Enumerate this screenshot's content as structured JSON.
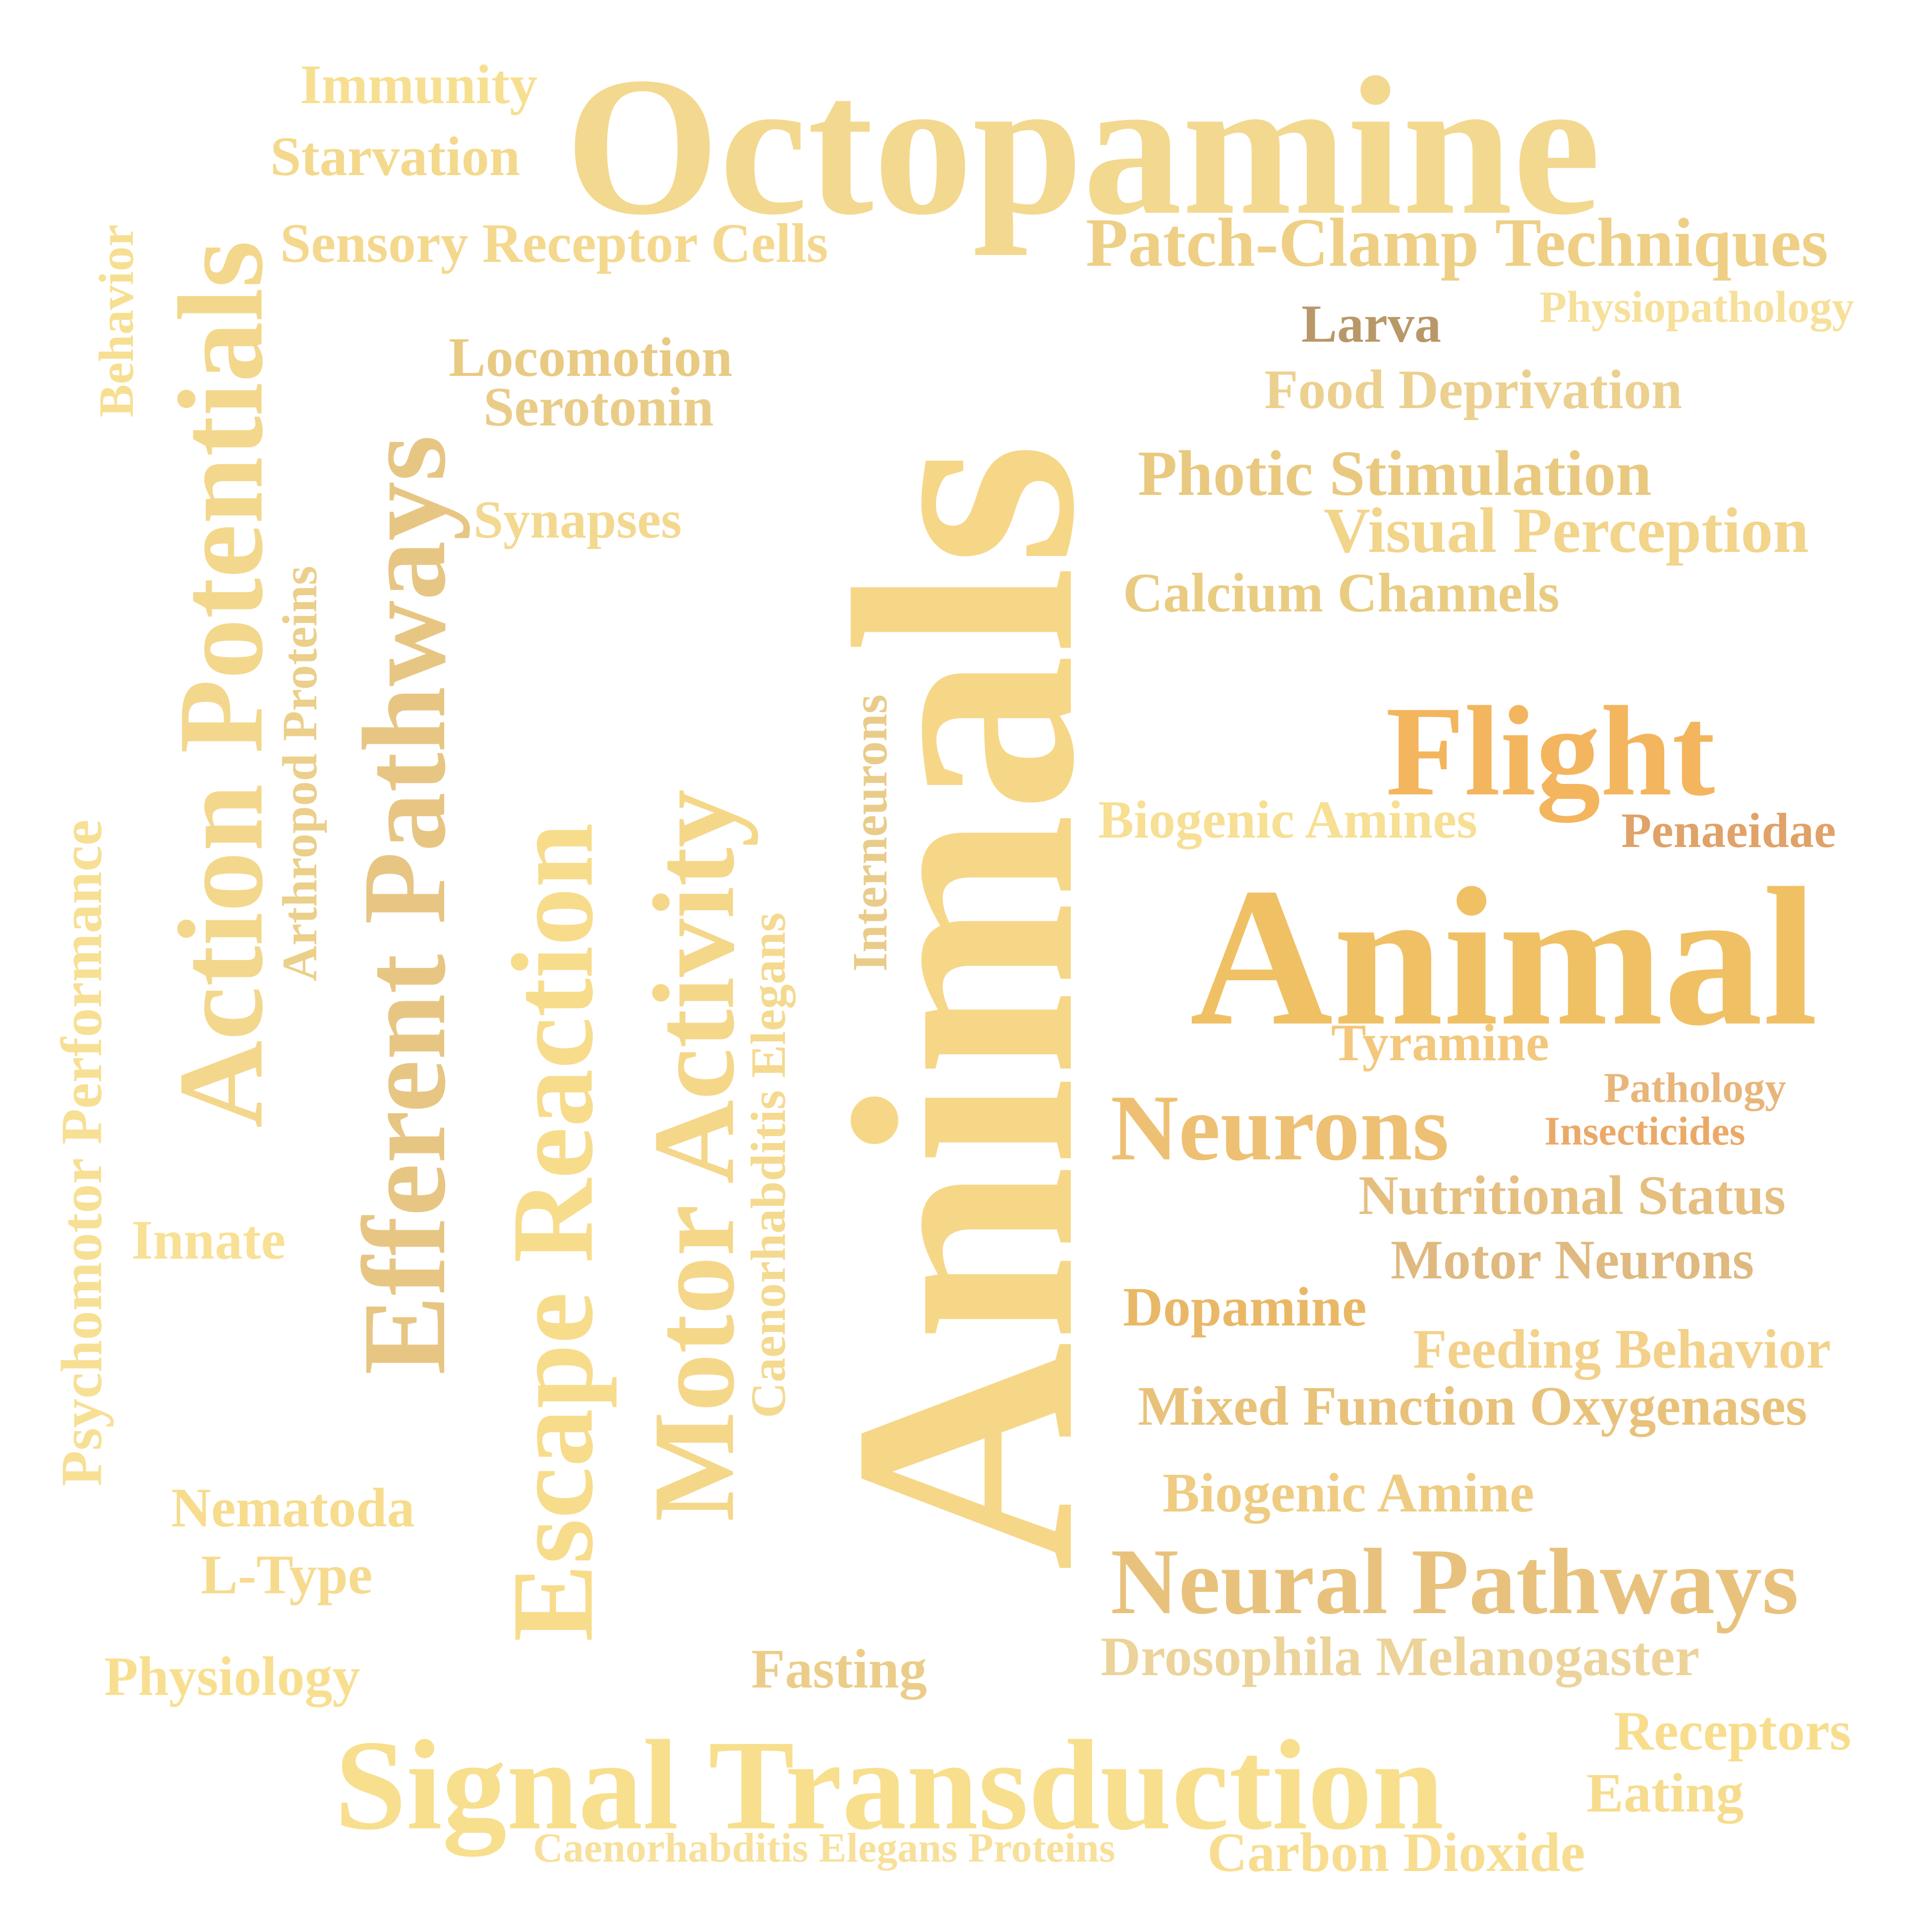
{
  "words": [
    {
      "text": "Octopamine",
      "color": "#f3d88f"
    },
    {
      "text": "Immunity",
      "color": "#f7df92"
    },
    {
      "text": "Starvation",
      "color": "#f4d88c"
    },
    {
      "text": "Sensory Receptor Cells",
      "color": "#f4d88e"
    },
    {
      "text": "Patch-Clamp Techniques",
      "color": "#eecf85"
    },
    {
      "text": "Physiopathology",
      "color": "#f6e09a"
    },
    {
      "text": "Larva",
      "color": "#b89868"
    },
    {
      "text": "Food Deprivation",
      "color": "#ecd08f"
    },
    {
      "text": "Photic Stimulation",
      "color": "#e9c97f"
    },
    {
      "text": "Visual Perception",
      "color": "#f2d48a"
    },
    {
      "text": "Calcium Channels",
      "color": "#e9cc82"
    },
    {
      "text": "Behavior",
      "color": "#f7df92"
    },
    {
      "text": "Action Potentials",
      "color": "#f3d78c"
    },
    {
      "text": "Arthropod Proteins",
      "color": "#ebcf8a"
    },
    {
      "text": "Locomotion",
      "color": "#e8ca82"
    },
    {
      "text": "Serotonin",
      "color": "#e9cc87"
    },
    {
      "text": "Synapses",
      "color": "#f3d890"
    },
    {
      "text": "Efferent Pathways",
      "color": "#e7c684"
    },
    {
      "text": "Escape Reaction",
      "color": "#f7dc8c"
    },
    {
      "text": "Motor Activity",
      "color": "#f5d78a"
    },
    {
      "text": "Caenorhabditis Elegans",
      "color": "#f4d98f"
    },
    {
      "text": "Interneurons",
      "color": "#e9cc8a"
    },
    {
      "text": "Animals",
      "color": "#f6d788"
    },
    {
      "text": "Psychomotor Performance",
      "color": "#f7df94"
    },
    {
      "text": "Flight",
      "color": "#f3b55e"
    },
    {
      "text": "Penaeidae",
      "color": "#e0a268"
    },
    {
      "text": "Biogenic Amines",
      "color": "#f7df93"
    },
    {
      "text": "Animal",
      "color": "#f0c065"
    },
    {
      "text": "Tyramine",
      "color": "#f3c77c"
    },
    {
      "text": "Pathology",
      "color": "#e8b57a"
    },
    {
      "text": "Insecticides",
      "color": "#eba968"
    },
    {
      "text": "Neurons",
      "color": "#eec073"
    },
    {
      "text": "Nutritional Status",
      "color": "#e5bf80"
    },
    {
      "text": "Motor Neurons",
      "color": "#dfb97f"
    },
    {
      "text": "Dopamine",
      "color": "#e9b867"
    },
    {
      "text": "Feeding Behavior",
      "color": "#f3d18a"
    },
    {
      "text": "Mixed Function Oxygenases",
      "color": "#e8c27a"
    },
    {
      "text": "Innate",
      "color": "#f8e095"
    },
    {
      "text": "Nematoda",
      "color": "#f7dc8d"
    },
    {
      "text": "L-Type",
      "color": "#f6da8e"
    },
    {
      "text": "Biogenic Amine",
      "color": "#efcc82"
    },
    {
      "text": "Neural Pathways",
      "color": "#e8c27d"
    },
    {
      "text": "Physiology",
      "color": "#f8df90"
    },
    {
      "text": "Fasting",
      "color": "#ebcd89"
    },
    {
      "text": "Drosophila Melanogaster",
      "color": "#ecd39a"
    },
    {
      "text": "Receptors",
      "color": "#f8dd8d"
    },
    {
      "text": "Signal Transduction",
      "color": "#f8df8e"
    },
    {
      "text": "Eating",
      "color": "#f7dc8e"
    },
    {
      "text": "Caenorhabditis Elegans Proteins",
      "color": "#f8e09b"
    },
    {
      "text": "Carbon Dioxide",
      "color": "#f8dd90"
    }
  ]
}
